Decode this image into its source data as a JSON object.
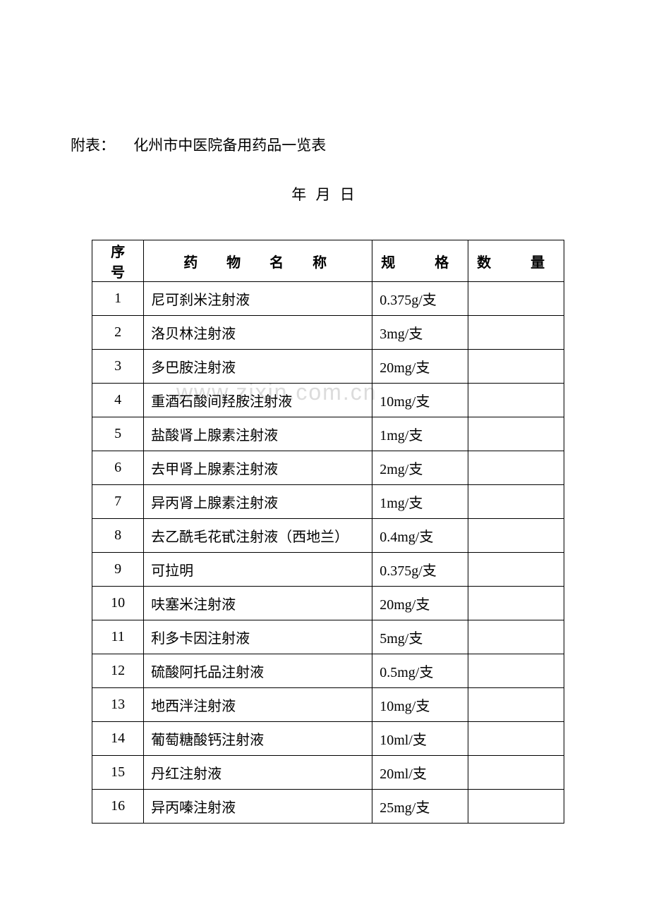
{
  "header": {
    "prefix": "附表：",
    "title": "化州市中医院备用药品一览表"
  },
  "date": "年   月   日",
  "watermark": "www.zixin.com.cn",
  "table": {
    "headers": {
      "seq": "序 号",
      "name": "药 物 名 称",
      "spec1": "规",
      "spec2": "格",
      "qty1": "数",
      "qty2": "量"
    },
    "rows": [
      {
        "seq": "1",
        "name": "尼可刹米注射液",
        "spec": "0.375g/支",
        "qty": ""
      },
      {
        "seq": "2",
        "name": "洛贝林注射液",
        "spec": "3mg/支",
        "qty": ""
      },
      {
        "seq": "3",
        "name": "多巴胺注射液",
        "spec": "20mg/支",
        "qty": ""
      },
      {
        "seq": "4",
        "name": "重酒石酸间羟胺注射液",
        "spec": "10mg/支",
        "qty": ""
      },
      {
        "seq": "5",
        "name": "盐酸肾上腺素注射液",
        "spec": "1mg/支",
        "qty": ""
      },
      {
        "seq": "6",
        "name": "去甲肾上腺素注射液",
        "spec": "2mg/支",
        "qty": ""
      },
      {
        "seq": "7",
        "name": "异丙肾上腺素注射液",
        "spec": "1mg/支",
        "qty": ""
      },
      {
        "seq": "8",
        "name": "去乙酰毛花甙注射液（西地兰）",
        "spec": "0.4mg/支",
        "qty": ""
      },
      {
        "seq": "9",
        "name": "可拉明",
        "spec": "0.375g/支",
        "qty": ""
      },
      {
        "seq": "10",
        "name": "呋塞米注射液",
        "spec": "20mg/支",
        "qty": ""
      },
      {
        "seq": "11",
        "name": "利多卡因注射液",
        "spec": "5mg/支",
        "qty": ""
      },
      {
        "seq": "12",
        "name": "硫酸阿托品注射液",
        "spec": "0.5mg/支",
        "qty": ""
      },
      {
        "seq": "13",
        "name": "地西泮注射液",
        "spec": "10mg/支",
        "qty": ""
      },
      {
        "seq": "14",
        "name": "葡萄糖酸钙注射液",
        "spec": "10ml/支",
        "qty": ""
      },
      {
        "seq": "15",
        "name": "丹红注射液",
        "spec": "20ml/支",
        "qty": ""
      },
      {
        "seq": "16",
        "name": "异丙嗪注射液",
        "spec": "25mg/支",
        "qty": ""
      }
    ]
  },
  "colors": {
    "background": "#ffffff",
    "text": "#000000",
    "border": "#000000",
    "watermark": "#dcdcdc"
  },
  "typography": {
    "body_fontsize": 21,
    "table_fontsize": 20,
    "font_family": "SimSun"
  }
}
